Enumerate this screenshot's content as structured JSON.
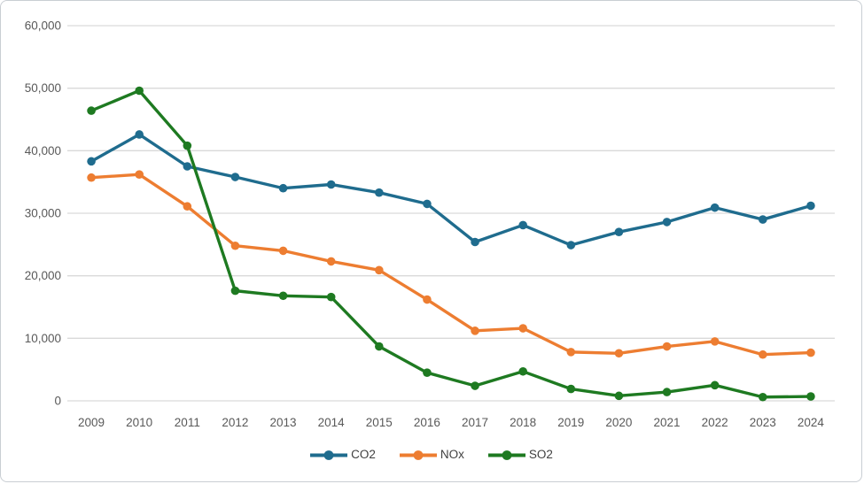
{
  "chart_data": {
    "type": "line",
    "title": "",
    "xlabel": "",
    "ylabel": "",
    "x": [
      "2009",
      "2010",
      "2011",
      "2012",
      "2013",
      "2014",
      "2015",
      "2016",
      "2017",
      "2018",
      "2019",
      "2020",
      "2021",
      "2022",
      "2023",
      "2024"
    ],
    "y_axis": {
      "min": 0,
      "max": 60000,
      "tick_step": 10000,
      "tick_labels": [
        "0",
        "10,000",
        "20,000",
        "30,000",
        "40,000",
        "50,000",
        "60,000"
      ]
    },
    "grid": true,
    "legend_position": "bottom",
    "series": [
      {
        "name": "CO2",
        "color": "#1F6C8E",
        "values": [
          38300,
          42600,
          37500,
          35800,
          34000,
          34600,
          33300,
          31500,
          25400,
          28100,
          24900,
          27000,
          28600,
          30900,
          29000,
          31200
        ]
      },
      {
        "name": "NOx",
        "color": "#ED7D31",
        "values": [
          35700,
          36200,
          31100,
          24800,
          24000,
          22300,
          20900,
          16200,
          11200,
          11600,
          7800,
          7600,
          8700,
          9500,
          7400,
          7700
        ]
      },
      {
        "name": "SO2",
        "color": "#1E7A21",
        "values": [
          46400,
          49600,
          40800,
          17600,
          16800,
          16600,
          8700,
          4500,
          2400,
          4700,
          1900,
          800,
          1400,
          2500,
          600,
          700
        ]
      }
    ],
    "colors": {
      "gridline": "#D9D9D9",
      "axis_text": "#595959",
      "legend_text": "#404040",
      "background": "#FFFFFF",
      "border": "#C9CED3"
    }
  }
}
